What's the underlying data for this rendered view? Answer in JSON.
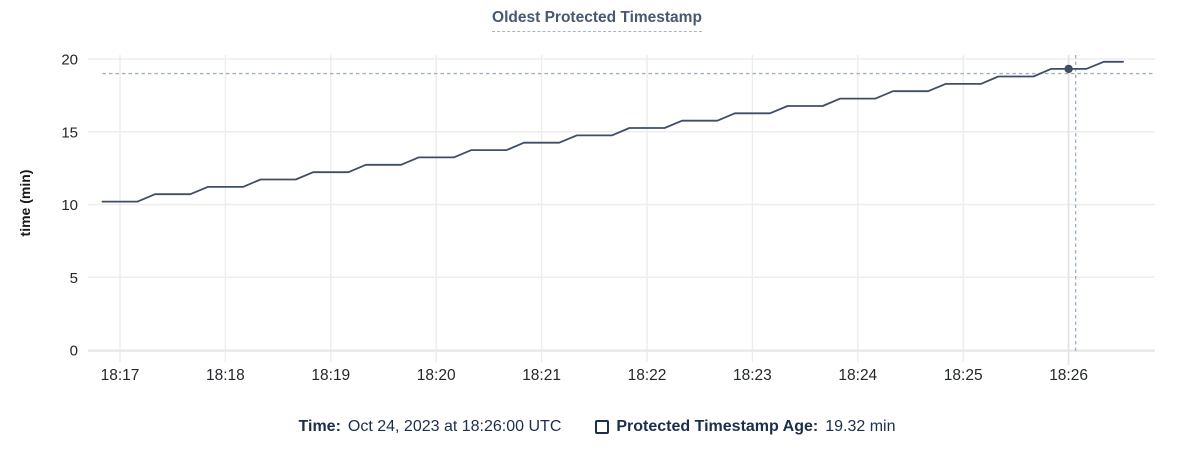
{
  "chart": {
    "title": "Oldest Protected Timestamp",
    "title_color": "#475872"
  },
  "legend": {
    "time_label": "Time:",
    "time_value": "Oct 24, 2023 at 18:26:00 UTC",
    "series_checkbox_icon": "checkbox-outline",
    "series_label": "Protected Timestamp Age:",
    "series_value": "19.32 min",
    "text_color": "#1c2e4a"
  },
  "chart_data": {
    "type": "line",
    "title": "Oldest Protected Timestamp",
    "xlabel": "",
    "ylabel": "time (min)",
    "ylim": [
      0,
      20
    ],
    "y_ticks": [
      0,
      5,
      10,
      15,
      20
    ],
    "x_tick_labels": [
      "18:17",
      "18:18",
      "18:19",
      "18:20",
      "18:21",
      "18:22",
      "18:23",
      "18:24",
      "18:25",
      "18:26"
    ],
    "x_tick_seconds": [
      0,
      60,
      120,
      180,
      240,
      300,
      360,
      420,
      480,
      540
    ],
    "grid": true,
    "legend_position": "bottom",
    "series": [
      {
        "name": "Protected Timestamp Age",
        "unit": "min",
        "color": "#3f4e66",
        "points": [
          [
            -10,
            10.2
          ],
          [
            10,
            10.2
          ],
          [
            20,
            10.71
          ],
          [
            40,
            10.71
          ],
          [
            50,
            11.21
          ],
          [
            70,
            11.21
          ],
          [
            80,
            11.72
          ],
          [
            100,
            11.72
          ],
          [
            110,
            12.22
          ],
          [
            130,
            12.22
          ],
          [
            140,
            12.73
          ],
          [
            160,
            12.73
          ],
          [
            170,
            13.24
          ],
          [
            190,
            13.24
          ],
          [
            200,
            13.74
          ],
          [
            220,
            13.74
          ],
          [
            230,
            14.25
          ],
          [
            250,
            14.25
          ],
          [
            260,
            14.75
          ],
          [
            280,
            14.75
          ],
          [
            290,
            15.26
          ],
          [
            310,
            15.26
          ],
          [
            320,
            15.76
          ],
          [
            340,
            15.76
          ],
          [
            350,
            16.27
          ],
          [
            370,
            16.27
          ],
          [
            380,
            16.77
          ],
          [
            400,
            16.77
          ],
          [
            410,
            17.28
          ],
          [
            430,
            17.28
          ],
          [
            440,
            17.79
          ],
          [
            460,
            17.79
          ],
          [
            470,
            18.29
          ],
          [
            490,
            18.29
          ],
          [
            500,
            18.8
          ],
          [
            520,
            18.8
          ],
          [
            530,
            19.32
          ],
          [
            550,
            19.32
          ],
          [
            560,
            19.81
          ],
          [
            571,
            19.81
          ]
        ]
      }
    ],
    "crosshair": {
      "hovered_time_label": "18:26:00",
      "hovered_value": 19.32,
      "column_t_seconds": 540,
      "v_guide_t_seconds": 544,
      "h_guide_value": 19.0
    }
  }
}
